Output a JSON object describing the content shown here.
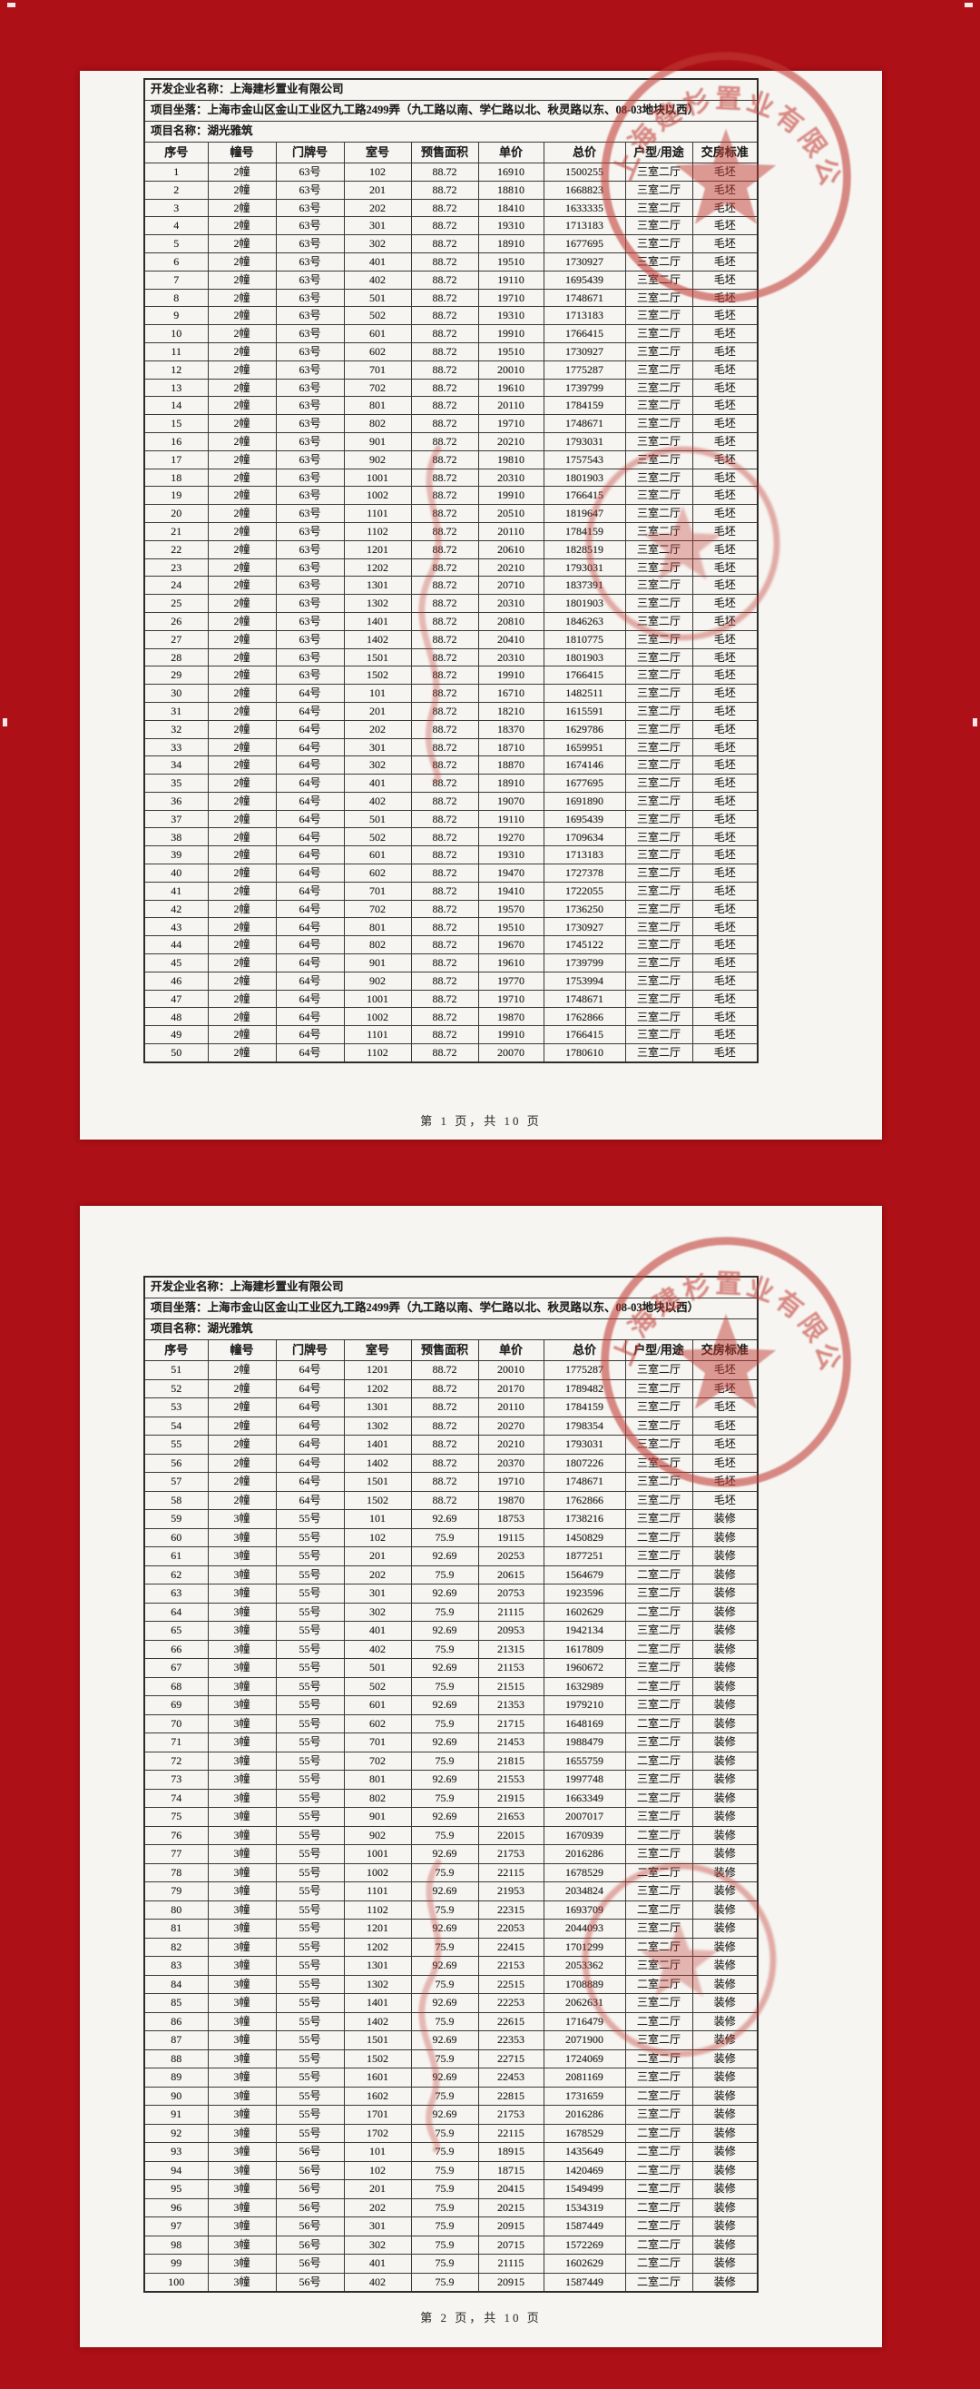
{
  "background_color": "#ad1016",
  "paper_color": "#f6f5f1",
  "seal": {
    "color": "#c23b34",
    "text": "上海建杉置业有限公司"
  },
  "pages": [
    {
      "info": [
        {
          "label": "开发企业名称：",
          "value": "上海建杉置业有限公司"
        },
        {
          "label": "项目坐落：",
          "value": "上海市金山区金山工业区九工路2499弄（九工路以南、学仁路以北、秋灵路以东、08-03地块以西）"
        },
        {
          "label": "项目名称：",
          "value": "湖光雅筑"
        }
      ],
      "columns": [
        "序号",
        "幢号",
        "门牌号",
        "室号",
        "预售面积",
        "单价",
        "总价",
        "户型/用途",
        "交房标准"
      ],
      "rows": [
        [
          "1",
          "2幢",
          "63号",
          "102",
          "88.72",
          "16910",
          "1500255",
          "三室二厅",
          "毛坯"
        ],
        [
          "2",
          "2幢",
          "63号",
          "201",
          "88.72",
          "18810",
          "1668823",
          "三室二厅",
          "毛坯"
        ],
        [
          "3",
          "2幢",
          "63号",
          "202",
          "88.72",
          "18410",
          "1633335",
          "三室二厅",
          "毛坯"
        ],
        [
          "4",
          "2幢",
          "63号",
          "301",
          "88.72",
          "19310",
          "1713183",
          "三室二厅",
          "毛坯"
        ],
        [
          "5",
          "2幢",
          "63号",
          "302",
          "88.72",
          "18910",
          "1677695",
          "三室二厅",
          "毛坯"
        ],
        [
          "6",
          "2幢",
          "63号",
          "401",
          "88.72",
          "19510",
          "1730927",
          "三室二厅",
          "毛坯"
        ],
        [
          "7",
          "2幢",
          "63号",
          "402",
          "88.72",
          "19110",
          "1695439",
          "三室二厅",
          "毛坯"
        ],
        [
          "8",
          "2幢",
          "63号",
          "501",
          "88.72",
          "19710",
          "1748671",
          "三室二厅",
          "毛坯"
        ],
        [
          "9",
          "2幢",
          "63号",
          "502",
          "88.72",
          "19310",
          "1713183",
          "三室二厅",
          "毛坯"
        ],
        [
          "10",
          "2幢",
          "63号",
          "601",
          "88.72",
          "19910",
          "1766415",
          "三室二厅",
          "毛坯"
        ],
        [
          "11",
          "2幢",
          "63号",
          "602",
          "88.72",
          "19510",
          "1730927",
          "三室二厅",
          "毛坯"
        ],
        [
          "12",
          "2幢",
          "63号",
          "701",
          "88.72",
          "20010",
          "1775287",
          "三室二厅",
          "毛坯"
        ],
        [
          "13",
          "2幢",
          "63号",
          "702",
          "88.72",
          "19610",
          "1739799",
          "三室二厅",
          "毛坯"
        ],
        [
          "14",
          "2幢",
          "63号",
          "801",
          "88.72",
          "20110",
          "1784159",
          "三室二厅",
          "毛坯"
        ],
        [
          "15",
          "2幢",
          "63号",
          "802",
          "88.72",
          "19710",
          "1748671",
          "三室二厅",
          "毛坯"
        ],
        [
          "16",
          "2幢",
          "63号",
          "901",
          "88.72",
          "20210",
          "1793031",
          "三室二厅",
          "毛坯"
        ],
        [
          "17",
          "2幢",
          "63号",
          "902",
          "88.72",
          "19810",
          "1757543",
          "三室二厅",
          "毛坯"
        ],
        [
          "18",
          "2幢",
          "63号",
          "1001",
          "88.72",
          "20310",
          "1801903",
          "三室二厅",
          "毛坯"
        ],
        [
          "19",
          "2幢",
          "63号",
          "1002",
          "88.72",
          "19910",
          "1766415",
          "三室二厅",
          "毛坯"
        ],
        [
          "20",
          "2幢",
          "63号",
          "1101",
          "88.72",
          "20510",
          "1819647",
          "三室二厅",
          "毛坯"
        ],
        [
          "21",
          "2幢",
          "63号",
          "1102",
          "88.72",
          "20110",
          "1784159",
          "三室二厅",
          "毛坯"
        ],
        [
          "22",
          "2幢",
          "63号",
          "1201",
          "88.72",
          "20610",
          "1828519",
          "三室二厅",
          "毛坯"
        ],
        [
          "23",
          "2幢",
          "63号",
          "1202",
          "88.72",
          "20210",
          "1793031",
          "三室二厅",
          "毛坯"
        ],
        [
          "24",
          "2幢",
          "63号",
          "1301",
          "88.72",
          "20710",
          "1837391",
          "三室二厅",
          "毛坯"
        ],
        [
          "25",
          "2幢",
          "63号",
          "1302",
          "88.72",
          "20310",
          "1801903",
          "三室二厅",
          "毛坯"
        ],
        [
          "26",
          "2幢",
          "63号",
          "1401",
          "88.72",
          "20810",
          "1846263",
          "三室二厅",
          "毛坯"
        ],
        [
          "27",
          "2幢",
          "63号",
          "1402",
          "88.72",
          "20410",
          "1810775",
          "三室二厅",
          "毛坯"
        ],
        [
          "28",
          "2幢",
          "63号",
          "1501",
          "88.72",
          "20310",
          "1801903",
          "三室二厅",
          "毛坯"
        ],
        [
          "29",
          "2幢",
          "63号",
          "1502",
          "88.72",
          "19910",
          "1766415",
          "三室二厅",
          "毛坯"
        ],
        [
          "30",
          "2幢",
          "64号",
          "101",
          "88.72",
          "16710",
          "1482511",
          "三室二厅",
          "毛坯"
        ],
        [
          "31",
          "2幢",
          "64号",
          "201",
          "88.72",
          "18210",
          "1615591",
          "三室二厅",
          "毛坯"
        ],
        [
          "32",
          "2幢",
          "64号",
          "202",
          "88.72",
          "18370",
          "1629786",
          "三室二厅",
          "毛坯"
        ],
        [
          "33",
          "2幢",
          "64号",
          "301",
          "88.72",
          "18710",
          "1659951",
          "三室二厅",
          "毛坯"
        ],
        [
          "34",
          "2幢",
          "64号",
          "302",
          "88.72",
          "18870",
          "1674146",
          "三室二厅",
          "毛坯"
        ],
        [
          "35",
          "2幢",
          "64号",
          "401",
          "88.72",
          "18910",
          "1677695",
          "三室二厅",
          "毛坯"
        ],
        [
          "36",
          "2幢",
          "64号",
          "402",
          "88.72",
          "19070",
          "1691890",
          "三室二厅",
          "毛坯"
        ],
        [
          "37",
          "2幢",
          "64号",
          "501",
          "88.72",
          "19110",
          "1695439",
          "三室二厅",
          "毛坯"
        ],
        [
          "38",
          "2幢",
          "64号",
          "502",
          "88.72",
          "19270",
          "1709634",
          "三室二厅",
          "毛坯"
        ],
        [
          "39",
          "2幢",
          "64号",
          "601",
          "88.72",
          "19310",
          "1713183",
          "三室二厅",
          "毛坯"
        ],
        [
          "40",
          "2幢",
          "64号",
          "602",
          "88.72",
          "19470",
          "1727378",
          "三室二厅",
          "毛坯"
        ],
        [
          "41",
          "2幢",
          "64号",
          "701",
          "88.72",
          "19410",
          "1722055",
          "三室二厅",
          "毛坯"
        ],
        [
          "42",
          "2幢",
          "64号",
          "702",
          "88.72",
          "19570",
          "1736250",
          "三室二厅",
          "毛坯"
        ],
        [
          "43",
          "2幢",
          "64号",
          "801",
          "88.72",
          "19510",
          "1730927",
          "三室二厅",
          "毛坯"
        ],
        [
          "44",
          "2幢",
          "64号",
          "802",
          "88.72",
          "19670",
          "1745122",
          "三室二厅",
          "毛坯"
        ],
        [
          "45",
          "2幢",
          "64号",
          "901",
          "88.72",
          "19610",
          "1739799",
          "三室二厅",
          "毛坯"
        ],
        [
          "46",
          "2幢",
          "64号",
          "902",
          "88.72",
          "19770",
          "1753994",
          "三室二厅",
          "毛坯"
        ],
        [
          "47",
          "2幢",
          "64号",
          "1001",
          "88.72",
          "19710",
          "1748671",
          "三室二厅",
          "毛坯"
        ],
        [
          "48",
          "2幢",
          "64号",
          "1002",
          "88.72",
          "19870",
          "1762866",
          "三室二厅",
          "毛坯"
        ],
        [
          "49",
          "2幢",
          "64号",
          "1101",
          "88.72",
          "19910",
          "1766415",
          "三室二厅",
          "毛坯"
        ],
        [
          "50",
          "2幢",
          "64号",
          "1102",
          "88.72",
          "20070",
          "1780610",
          "三室二厅",
          "毛坯"
        ]
      ],
      "footer": "第 1 页，共 10 页"
    },
    {
      "info": [
        {
          "label": "开发企业名称：",
          "value": "上海建杉置业有限公司"
        },
        {
          "label": "项目坐落：",
          "value": "上海市金山区金山工业区九工路2499弄（九工路以南、学仁路以北、秋灵路以东、08-03地块以西）"
        },
        {
          "label": "项目名称：",
          "value": "湖光雅筑"
        }
      ],
      "columns": [
        "序号",
        "幢号",
        "门牌号",
        "室号",
        "预售面积",
        "单价",
        "总价",
        "户型/用途",
        "交房标准"
      ],
      "rows": [
        [
          "51",
          "2幢",
          "64号",
          "1201",
          "88.72",
          "20010",
          "1775287",
          "三室二厅",
          "毛坯"
        ],
        [
          "52",
          "2幢",
          "64号",
          "1202",
          "88.72",
          "20170",
          "1789482",
          "三室二厅",
          "毛坯"
        ],
        [
          "53",
          "2幢",
          "64号",
          "1301",
          "88.72",
          "20110",
          "1784159",
          "三室二厅",
          "毛坯"
        ],
        [
          "54",
          "2幢",
          "64号",
          "1302",
          "88.72",
          "20270",
          "1798354",
          "三室二厅",
          "毛坯"
        ],
        [
          "55",
          "2幢",
          "64号",
          "1401",
          "88.72",
          "20210",
          "1793031",
          "三室二厅",
          "毛坯"
        ],
        [
          "56",
          "2幢",
          "64号",
          "1402",
          "88.72",
          "20370",
          "1807226",
          "三室二厅",
          "毛坯"
        ],
        [
          "57",
          "2幢",
          "64号",
          "1501",
          "88.72",
          "19710",
          "1748671",
          "三室二厅",
          "毛坯"
        ],
        [
          "58",
          "2幢",
          "64号",
          "1502",
          "88.72",
          "19870",
          "1762866",
          "三室二厅",
          "毛坯"
        ],
        [
          "59",
          "3幢",
          "55号",
          "101",
          "92.69",
          "18753",
          "1738216",
          "三室二厅",
          "装修"
        ],
        [
          "60",
          "3幢",
          "55号",
          "102",
          "75.9",
          "19115",
          "1450829",
          "二室二厅",
          "装修"
        ],
        [
          "61",
          "3幢",
          "55号",
          "201",
          "92.69",
          "20253",
          "1877251",
          "三室二厅",
          "装修"
        ],
        [
          "62",
          "3幢",
          "55号",
          "202",
          "75.9",
          "20615",
          "1564679",
          "二室二厅",
          "装修"
        ],
        [
          "63",
          "3幢",
          "55号",
          "301",
          "92.69",
          "20753",
          "1923596",
          "三室二厅",
          "装修"
        ],
        [
          "64",
          "3幢",
          "55号",
          "302",
          "75.9",
          "21115",
          "1602629",
          "二室二厅",
          "装修"
        ],
        [
          "65",
          "3幢",
          "55号",
          "401",
          "92.69",
          "20953",
          "1942134",
          "三室二厅",
          "装修"
        ],
        [
          "66",
          "3幢",
          "55号",
          "402",
          "75.9",
          "21315",
          "1617809",
          "二室二厅",
          "装修"
        ],
        [
          "67",
          "3幢",
          "55号",
          "501",
          "92.69",
          "21153",
          "1960672",
          "三室二厅",
          "装修"
        ],
        [
          "68",
          "3幢",
          "55号",
          "502",
          "75.9",
          "21515",
          "1632989",
          "二室二厅",
          "装修"
        ],
        [
          "69",
          "3幢",
          "55号",
          "601",
          "92.69",
          "21353",
          "1979210",
          "三室二厅",
          "装修"
        ],
        [
          "70",
          "3幢",
          "55号",
          "602",
          "75.9",
          "21715",
          "1648169",
          "二室二厅",
          "装修"
        ],
        [
          "71",
          "3幢",
          "55号",
          "701",
          "92.69",
          "21453",
          "1988479",
          "三室二厅",
          "装修"
        ],
        [
          "72",
          "3幢",
          "55号",
          "702",
          "75.9",
          "21815",
          "1655759",
          "二室二厅",
          "装修"
        ],
        [
          "73",
          "3幢",
          "55号",
          "801",
          "92.69",
          "21553",
          "1997748",
          "三室二厅",
          "装修"
        ],
        [
          "74",
          "3幢",
          "55号",
          "802",
          "75.9",
          "21915",
          "1663349",
          "二室二厅",
          "装修"
        ],
        [
          "75",
          "3幢",
          "55号",
          "901",
          "92.69",
          "21653",
          "2007017",
          "三室二厅",
          "装修"
        ],
        [
          "76",
          "3幢",
          "55号",
          "902",
          "75.9",
          "22015",
          "1670939",
          "二室二厅",
          "装修"
        ],
        [
          "77",
          "3幢",
          "55号",
          "1001",
          "92.69",
          "21753",
          "2016286",
          "三室二厅",
          "装修"
        ],
        [
          "78",
          "3幢",
          "55号",
          "1002",
          "75.9",
          "22115",
          "1678529",
          "二室二厅",
          "装修"
        ],
        [
          "79",
          "3幢",
          "55号",
          "1101",
          "92.69",
          "21953",
          "2034824",
          "三室二厅",
          "装修"
        ],
        [
          "80",
          "3幢",
          "55号",
          "1102",
          "75.9",
          "22315",
          "1693709",
          "二室二厅",
          "装修"
        ],
        [
          "81",
          "3幢",
          "55号",
          "1201",
          "92.69",
          "22053",
          "2044093",
          "三室二厅",
          "装修"
        ],
        [
          "82",
          "3幢",
          "55号",
          "1202",
          "75.9",
          "22415",
          "1701299",
          "二室二厅",
          "装修"
        ],
        [
          "83",
          "3幢",
          "55号",
          "1301",
          "92.69",
          "22153",
          "2053362",
          "三室二厅",
          "装修"
        ],
        [
          "84",
          "3幢",
          "55号",
          "1302",
          "75.9",
          "22515",
          "1708889",
          "二室二厅",
          "装修"
        ],
        [
          "85",
          "3幢",
          "55号",
          "1401",
          "92.69",
          "22253",
          "2062631",
          "三室二厅",
          "装修"
        ],
        [
          "86",
          "3幢",
          "55号",
          "1402",
          "75.9",
          "22615",
          "1716479",
          "二室二厅",
          "装修"
        ],
        [
          "87",
          "3幢",
          "55号",
          "1501",
          "92.69",
          "22353",
          "2071900",
          "三室二厅",
          "装修"
        ],
        [
          "88",
          "3幢",
          "55号",
          "1502",
          "75.9",
          "22715",
          "1724069",
          "二室二厅",
          "装修"
        ],
        [
          "89",
          "3幢",
          "55号",
          "1601",
          "92.69",
          "22453",
          "2081169",
          "三室二厅",
          "装修"
        ],
        [
          "90",
          "3幢",
          "55号",
          "1602",
          "75.9",
          "22815",
          "1731659",
          "二室二厅",
          "装修"
        ],
        [
          "91",
          "3幢",
          "55号",
          "1701",
          "92.69",
          "21753",
          "2016286",
          "三室二厅",
          "装修"
        ],
        [
          "92",
          "3幢",
          "55号",
          "1702",
          "75.9",
          "22115",
          "1678529",
          "二室二厅",
          "装修"
        ],
        [
          "93",
          "3幢",
          "56号",
          "101",
          "75.9",
          "18915",
          "1435649",
          "二室二厅",
          "装修"
        ],
        [
          "94",
          "3幢",
          "56号",
          "102",
          "75.9",
          "18715",
          "1420469",
          "二室二厅",
          "装修"
        ],
        [
          "95",
          "3幢",
          "56号",
          "201",
          "75.9",
          "20415",
          "1549499",
          "二室二厅",
          "装修"
        ],
        [
          "96",
          "3幢",
          "56号",
          "202",
          "75.9",
          "20215",
          "1534319",
          "二室二厅",
          "装修"
        ],
        [
          "97",
          "3幢",
          "56号",
          "301",
          "75.9",
          "20915",
          "1587449",
          "二室二厅",
          "装修"
        ],
        [
          "98",
          "3幢",
          "56号",
          "302",
          "75.9",
          "20715",
          "1572269",
          "二室二厅",
          "装修"
        ],
        [
          "99",
          "3幢",
          "56号",
          "401",
          "75.9",
          "21115",
          "1602629",
          "二室二厅",
          "装修"
        ],
        [
          "100",
          "3幢",
          "56号",
          "402",
          "75.9",
          "20915",
          "1587449",
          "二室二厅",
          "装修"
        ]
      ],
      "footer": "第 2 页，共 10 页"
    }
  ]
}
